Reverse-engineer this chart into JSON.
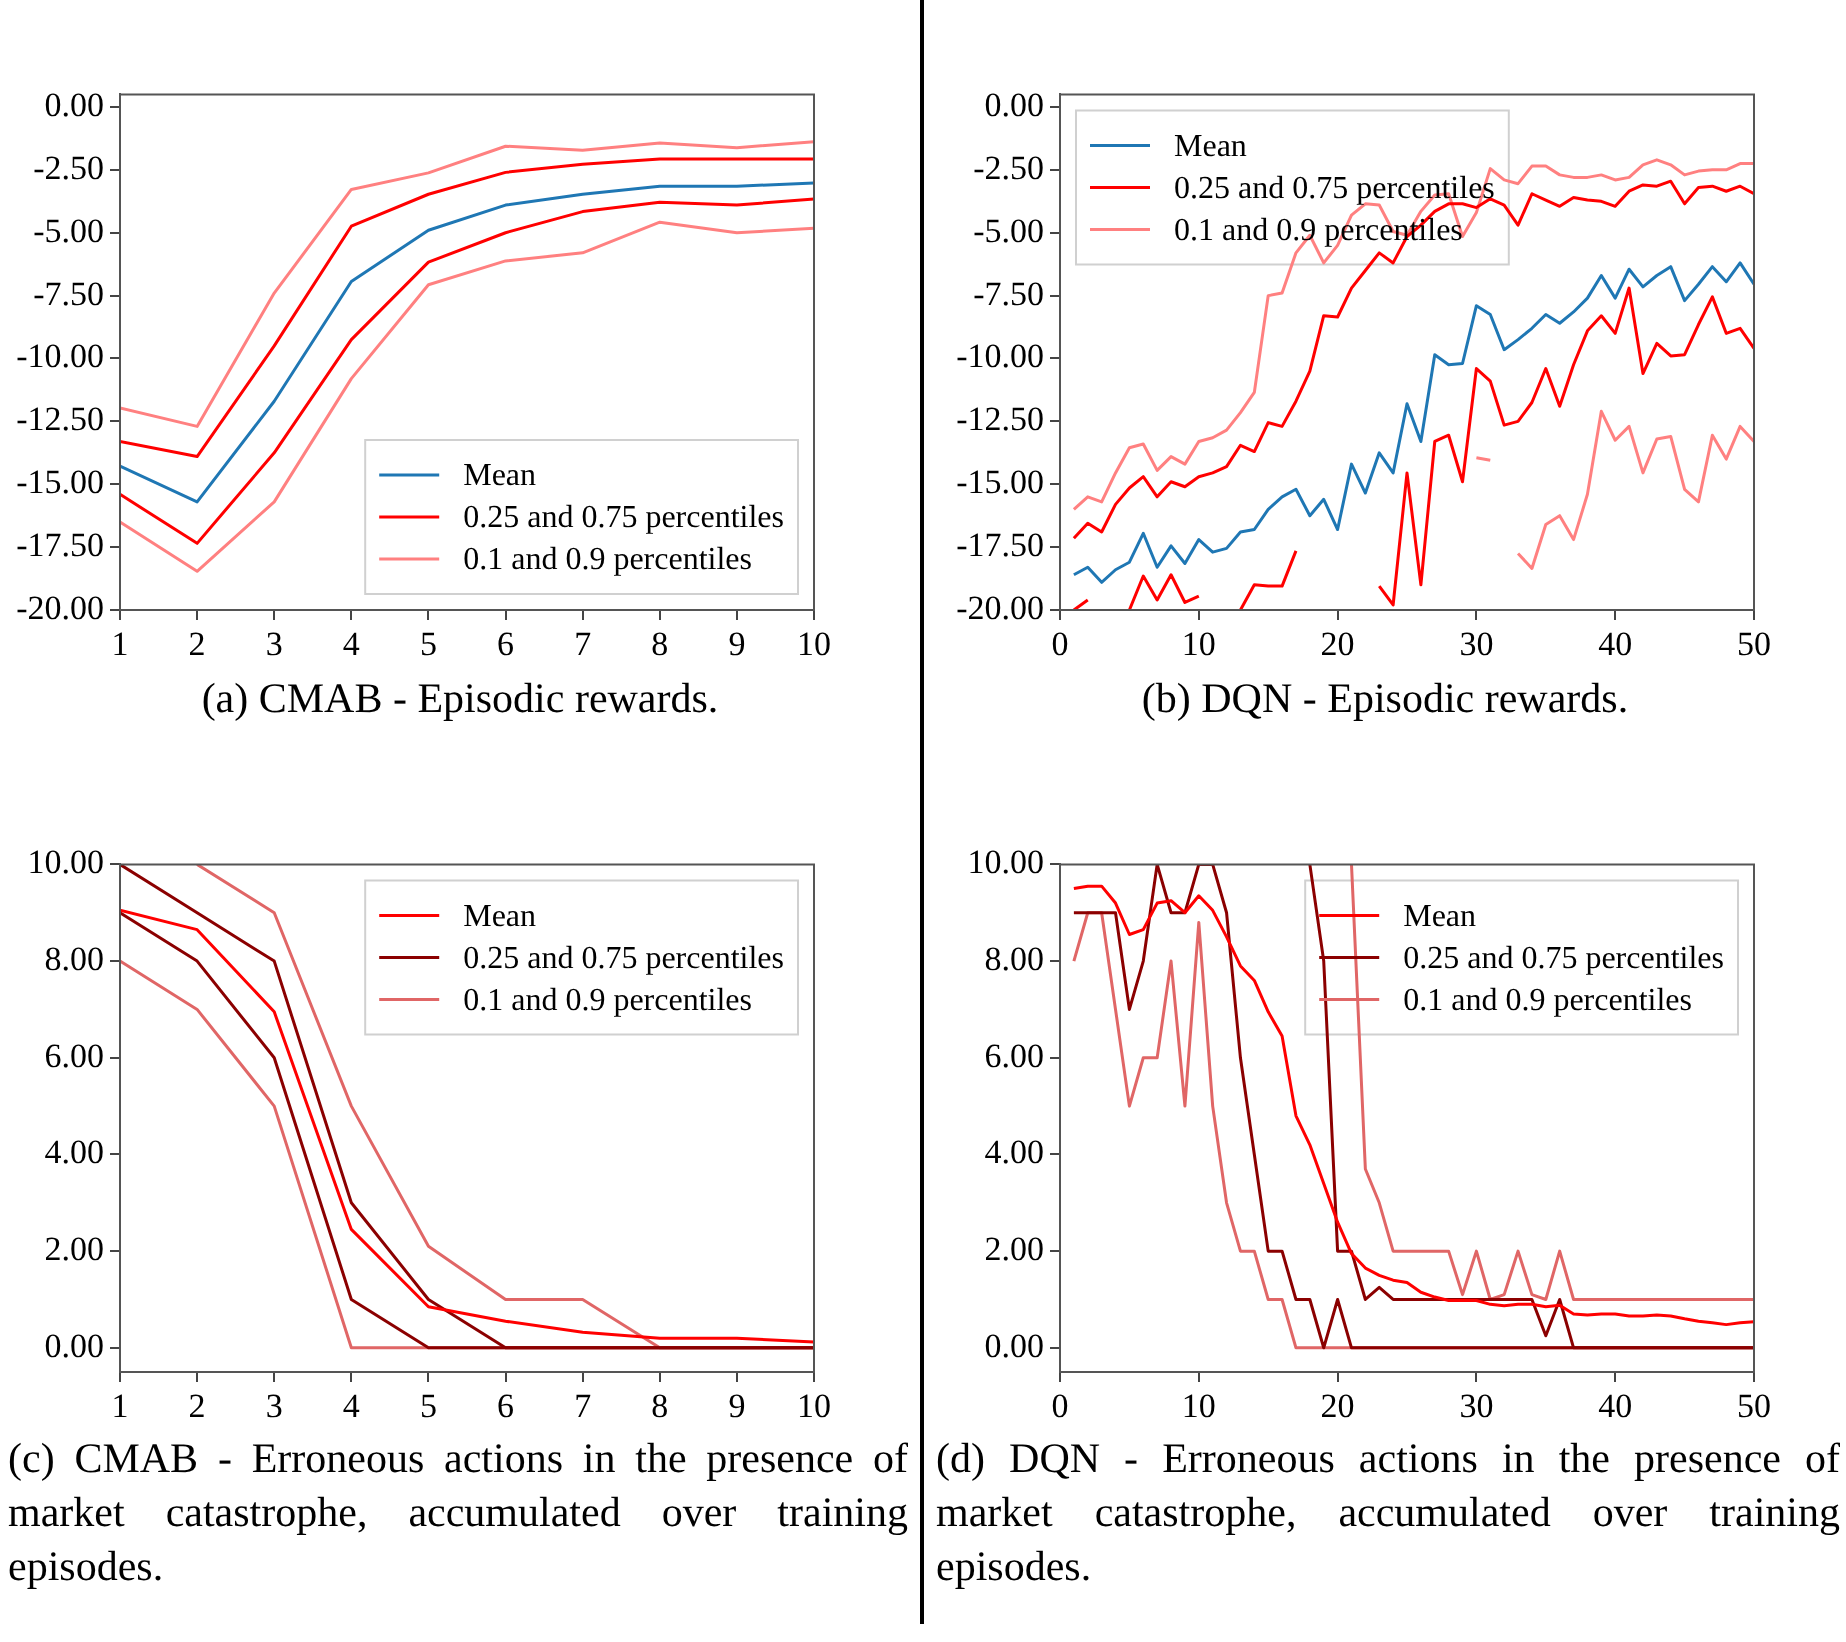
{
  "chart_data": [
    {
      "type": "line",
      "title": "(a) CMAB - Episodic rewards.",
      "legend": "bottom right",
      "x": [
        1,
        2,
        3,
        4,
        5,
        6,
        7,
        8,
        9,
        10
      ],
      "xlim": [
        1,
        10
      ],
      "xticks": [
        1,
        2,
        3,
        4,
        5,
        6,
        7,
        8,
        9,
        10
      ],
      "ylim": [
        -20,
        0.5
      ],
      "yticks": [
        {
          "value": -20,
          "label": "-20.00"
        },
        {
          "value": -17.5,
          "label": "-17.50"
        },
        {
          "value": -15,
          "label": "-15.00"
        },
        {
          "value": -12.5,
          "label": "-12.50"
        },
        {
          "value": -10,
          "label": "-10.00"
        },
        {
          "value": -7.5,
          "label": "-7.50"
        },
        {
          "value": -5,
          "label": "-5.00"
        },
        {
          "value": -2.5,
          "label": "-2.50"
        },
        {
          "value": 0,
          "label": "0.00"
        }
      ],
      "series": [
        {
          "name": "Mean",
          "color": "#1f77b4",
          "values": [
            -14.28,
            -15.7,
            -11.7,
            -6.94,
            -4.9,
            -3.9,
            -3.47,
            -3.15,
            -3.15,
            -3.02
          ]
        },
        {
          "name": "0.25 and 0.75 percentiles",
          "color": "#ff0000",
          "values": [
            -13.3,
            -13.9,
            -9.5,
            -4.74,
            -3.47,
            -2.6,
            -2.28,
            -2.07,
            -2.07,
            -2.07
          ]
        },
        {
          "color": "#ff0000",
          "values": [
            -15.4,
            -17.35,
            -13.75,
            -9.25,
            -6.17,
            -5.0,
            -4.16,
            -3.79,
            -3.9,
            -3.66
          ]
        },
        {
          "name": "0.1 and 0.9 percentiles",
          "color": "#ff8080",
          "values": [
            -11.97,
            -12.7,
            -7.4,
            -3.28,
            -2.62,
            -1.56,
            -1.72,
            -1.43,
            -1.62,
            -1.38
          ]
        },
        {
          "color": "#ff8080",
          "values": [
            -16.5,
            -18.46,
            -15.7,
            -10.8,
            -7.07,
            -6.12,
            -5.8,
            -4.58,
            -5.0,
            -4.82
          ]
        }
      ]
    },
    {
      "type": "line",
      "title": "(b) DQN - Episodic rewards.",
      "legend": "top left",
      "x": [
        1,
        2,
        3,
        4,
        5,
        6,
        7,
        8,
        9,
        10,
        11,
        12,
        13,
        14,
        15,
        16,
        17,
        18,
        19,
        20,
        21,
        22,
        23,
        24,
        25,
        26,
        27,
        28,
        29,
        30,
        31,
        32,
        33,
        34,
        35,
        36,
        37,
        38,
        39,
        40,
        41,
        42,
        43,
        44,
        45,
        46,
        47,
        48,
        49,
        50
      ],
      "xlim": [
        0,
        50
      ],
      "xticks": [
        0,
        10,
        20,
        30,
        40,
        50
      ],
      "ylim": [
        -20,
        0.5
      ],
      "yticks": [
        {
          "value": -20,
          "label": "-20.00"
        },
        {
          "value": -17.5,
          "label": "-17.50"
        },
        {
          "value": -15,
          "label": "-15.00"
        },
        {
          "value": -12.5,
          "label": "-12.50"
        },
        {
          "value": -10,
          "label": "-10.00"
        },
        {
          "value": -7.5,
          "label": "-7.50"
        },
        {
          "value": -5,
          "label": "-5.00"
        },
        {
          "value": -2.5,
          "label": "-2.50"
        },
        {
          "value": 0,
          "label": "0.00"
        }
      ],
      "series": [
        {
          "name": "Mean",
          "color": "#1f77b4",
          "values": [
            -18.6,
            -18.3,
            -18.9,
            -18.4,
            -18.1,
            -16.95,
            -18.3,
            -17.45,
            -18.15,
            -17.2,
            -17.7,
            -17.55,
            -16.9,
            -16.8,
            -16.0,
            -15.5,
            -15.2,
            -16.25,
            -15.6,
            -16.8,
            -14.2,
            -15.35,
            -13.75,
            -14.55,
            -11.8,
            -13.3,
            -9.85,
            -10.25,
            -10.2,
            -7.9,
            -8.25,
            -9.65,
            -9.25,
            -8.8,
            -8.25,
            -8.6,
            -8.15,
            -7.6,
            -6.7,
            -7.6,
            -6.45,
            -7.15,
            -6.7,
            -6.35,
            -7.7,
            -7.05,
            -6.35,
            -6.95,
            -6.2,
            -7.05
          ]
        },
        {
          "name": "0.25 and 0.75 percentiles",
          "color": "#ff0000",
          "values": [
            -17.15,
            -16.55,
            -16.9,
            -15.8,
            -15.15,
            -14.7,
            -15.5,
            -14.9,
            -15.1,
            -14.7,
            -14.55,
            -14.3,
            -13.45,
            -13.7,
            -12.55,
            -12.7,
            -11.7,
            -10.5,
            -8.3,
            -8.35,
            -7.2,
            -6.5,
            -5.8,
            -6.2,
            -5.15,
            -4.7,
            -4.15,
            -3.85,
            -3.85,
            -4.0,
            -3.65,
            -3.9,
            -4.7,
            -3.45,
            -3.7,
            -3.95,
            -3.6,
            -3.7,
            -3.75,
            -3.95,
            -3.35,
            -3.1,
            -3.15,
            -2.95,
            -3.85,
            -3.2,
            -3.15,
            -3.35,
            -3.15,
            -3.45
          ]
        },
        {
          "color": "#ff0000",
          "values": [
            -20.0,
            -19.6,
            null,
            null,
            -20.0,
            -18.65,
            -19.6,
            -18.6,
            -19.7,
            -19.45,
            null,
            null,
            -20.0,
            -19.0,
            -19.05,
            -19.05,
            -17.65,
            null,
            null,
            null,
            null,
            null,
            -19.05,
            -19.8,
            -14.55,
            -19.0,
            -13.3,
            -13.05,
            -14.9,
            -10.4,
            -10.9,
            -12.65,
            -12.5,
            -11.75,
            -10.4,
            -11.9,
            -10.25,
            -8.9,
            -8.3,
            -9.0,
            -7.2,
            -10.6,
            -9.4,
            -9.9,
            -9.85,
            -8.65,
            -7.55,
            -9.0,
            -8.8,
            -9.6
          ]
        },
        {
          "name": "0.1 and 0.9 percentiles",
          "color": "#ff8080",
          "values": [
            -16.0,
            -15.5,
            -15.7,
            -14.55,
            -13.55,
            -13.4,
            -14.45,
            -13.9,
            -14.2,
            -13.3,
            -13.15,
            -12.85,
            -12.15,
            -11.35,
            -7.5,
            -7.4,
            -5.8,
            -5.1,
            -6.2,
            -5.5,
            -4.3,
            -3.85,
            -3.9,
            -4.95,
            -5.1,
            -4.15,
            -3.5,
            -3.45,
            -5.15,
            -4.2,
            -2.45,
            -2.9,
            -3.05,
            -2.35,
            -2.35,
            -2.7,
            -2.8,
            -2.8,
            -2.7,
            -2.9,
            -2.8,
            -2.3,
            -2.1,
            -2.3,
            -2.7,
            -2.55,
            -2.5,
            -2.5,
            -2.25,
            -2.25
          ]
        },
        {
          "color": "#ff8080",
          "values": [
            null,
            null,
            null,
            null,
            null,
            null,
            null,
            null,
            null,
            null,
            null,
            null,
            null,
            null,
            null,
            null,
            null,
            null,
            null,
            null,
            null,
            null,
            null,
            null,
            null,
            null,
            null,
            null,
            null,
            -13.95,
            -14.05,
            null,
            -17.75,
            -18.35,
            -16.6,
            -16.25,
            -17.2,
            -15.4,
            -12.1,
            -13.25,
            -12.7,
            -14.55,
            -13.2,
            -13.1,
            -15.2,
            -15.7,
            -13.05,
            -14.0,
            -12.7,
            -13.3
          ]
        }
      ]
    },
    {
      "type": "line",
      "title": "(c) CMAB - Erroneous actions in the presence of market catastrophe, accumulated over training episodes.",
      "legend": "top right",
      "x": [
        1,
        2,
        3,
        4,
        5,
        6,
        7,
        8,
        9,
        10
      ],
      "xlim": [
        1,
        10
      ],
      "xticks": [
        1,
        2,
        3,
        4,
        5,
        6,
        7,
        8,
        9,
        10
      ],
      "ylim": [
        -0.5,
        10
      ],
      "yticks": [
        {
          "value": 0,
          "label": "0.00"
        },
        {
          "value": 2,
          "label": "2.00"
        },
        {
          "value": 4,
          "label": "4.00"
        },
        {
          "value": 6,
          "label": "6.00"
        },
        {
          "value": 8,
          "label": "8.00"
        },
        {
          "value": 10,
          "label": "10.00"
        }
      ],
      "series": [
        {
          "name": "Mean",
          "color": "#ff0000",
          "values": [
            9.05,
            8.65,
            6.95,
            2.45,
            0.85,
            0.55,
            0.32,
            0.2,
            0.2,
            0.12
          ]
        },
        {
          "name": "0.25 and 0.75 percentiles",
          "color": "#8b0000",
          "values": [
            10,
            9,
            8,
            3,
            1,
            0,
            0,
            0,
            0,
            0
          ]
        },
        {
          "color": "#8b0000",
          "values": [
            9,
            8,
            6,
            1,
            0,
            0,
            0,
            0,
            0,
            0
          ]
        },
        {
          "name": "0.1 and 0.9 percentiles",
          "color": "#e06666",
          "values": [
            null,
            10,
            9,
            5,
            2.1,
            1,
            1,
            0,
            0,
            0
          ]
        },
        {
          "color": "#e06666",
          "values": [
            8,
            7,
            5,
            0,
            0,
            0,
            0,
            0,
            0,
            0
          ]
        }
      ]
    },
    {
      "type": "line",
      "title": "(d) DQN - Erroneous actions in the presence of market catastrophe, accumulated over training episodes.",
      "legend": "top right",
      "x": [
        1,
        2,
        3,
        4,
        5,
        6,
        7,
        8,
        9,
        10,
        11,
        12,
        13,
        14,
        15,
        16,
        17,
        18,
        19,
        20,
        21,
        22,
        23,
        24,
        25,
        26,
        27,
        28,
        29,
        30,
        31,
        32,
        33,
        34,
        35,
        36,
        37,
        38,
        39,
        40,
        41,
        42,
        43,
        44,
        45,
        46,
        47,
        48,
        49,
        50
      ],
      "xlim": [
        0,
        50
      ],
      "xticks": [
        0,
        10,
        20,
        30,
        40,
        50
      ],
      "ylim": [
        -0.5,
        10
      ],
      "yticks": [
        {
          "value": 0,
          "label": "0.00"
        },
        {
          "value": 2,
          "label": "2.00"
        },
        {
          "value": 4,
          "label": "4.00"
        },
        {
          "value": 6,
          "label": "6.00"
        },
        {
          "value": 8,
          "label": "8.00"
        },
        {
          "value": 10,
          "label": "10.00"
        }
      ],
      "series": [
        {
          "name": "Mean",
          "color": "#ff0000",
          "values": [
            9.5,
            9.55,
            9.55,
            9.2,
            8.55,
            8.65,
            9.2,
            9.25,
            9.0,
            9.35,
            9.05,
            8.5,
            7.9,
            7.6,
            6.95,
            6.45,
            4.8,
            4.2,
            3.4,
            2.6,
            1.95,
            1.65,
            1.5,
            1.4,
            1.35,
            1.15,
            1.05,
            0.98,
            0.98,
            0.98,
            0.9,
            0.87,
            0.9,
            0.9,
            0.85,
            0.88,
            0.7,
            0.68,
            0.7,
            0.7,
            0.66,
            0.66,
            0.68,
            0.66,
            0.6,
            0.55,
            0.52,
            0.48,
            0.52,
            0.54
          ]
        },
        {
          "name": "0.25 and 0.75 percentiles",
          "color": "#8b0000",
          "values": [
            null,
            null,
            null,
            null,
            null,
            null,
            null,
            null,
            null,
            null,
            null,
            null,
            null,
            null,
            null,
            null,
            null,
            10,
            8,
            2,
            2,
            1,
            1.25,
            1,
            1,
            1,
            1,
            1,
            1,
            1,
            1,
            1,
            1,
            1,
            0.25,
            1,
            0,
            0,
            0,
            0,
            0,
            0,
            0,
            0,
            0,
            0,
            0,
            0,
            0,
            0
          ]
        },
        {
          "color": "#8b0000",
          "values": [
            9,
            9,
            9,
            9,
            7,
            8,
            10,
            9,
            9,
            10,
            10,
            9,
            6,
            4,
            2,
            2,
            1,
            1,
            0,
            1,
            0,
            0,
            0,
            0,
            0,
            0,
            0,
            0,
            0,
            0,
            0,
            0,
            0,
            0,
            0,
            0,
            0,
            0,
            0,
            0,
            0,
            0,
            0,
            0,
            0,
            0,
            0,
            0,
            0,
            0
          ]
        },
        {
          "name": "0.1 and 0.9 percentiles",
          "color": "#e06666",
          "values": [
            null,
            null,
            null,
            null,
            null,
            null,
            null,
            null,
            null,
            null,
            null,
            null,
            null,
            null,
            null,
            null,
            null,
            null,
            null,
            null,
            10,
            3.7,
            3,
            2,
            2,
            2,
            2,
            2,
            1.1,
            2,
            1,
            1.1,
            2,
            1.1,
            1,
            2,
            1,
            1,
            1,
            1,
            1,
            1,
            1,
            1,
            1,
            1,
            1,
            1,
            1,
            1
          ]
        },
        {
          "color": "#e06666",
          "values": [
            8,
            9,
            9,
            7,
            5,
            6,
            6,
            8,
            5,
            8.8,
            5,
            3,
            2,
            2,
            1,
            1,
            0,
            0,
            0,
            0,
            0,
            0,
            0,
            0,
            0,
            0,
            0,
            0,
            0,
            0,
            0,
            0,
            0,
            0,
            0,
            0,
            0,
            0,
            0,
            0,
            0,
            0,
            0,
            0,
            0,
            0,
            0,
            0,
            0,
            0
          ]
        }
      ]
    }
  ]
}
